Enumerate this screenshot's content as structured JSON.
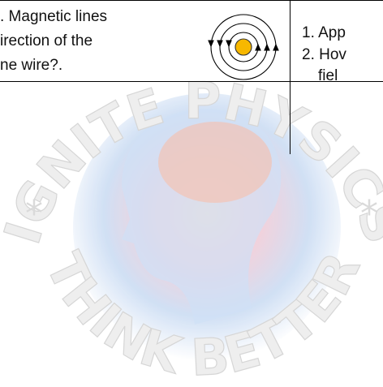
{
  "table": {
    "rows": [
      [
        {
          "lines": [
            ". Magnetic lines",
            "irection of the",
            "ne wire?."
          ]
        },
        {
          "lines": [
            "1. App",
            "2. Hov",
            "fiel"
          ]
        }
      ]
    ]
  },
  "watermark": {
    "top": "IGNITE PHYSICS",
    "bottom": "THINK BETTER",
    "left": "*",
    "right": "*"
  }
}
